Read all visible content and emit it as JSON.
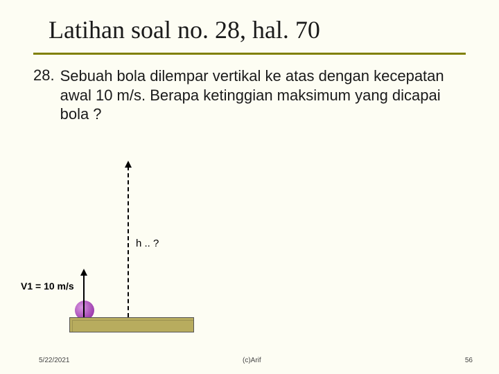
{
  "title": "Latihan soal no. 28, hal. 70",
  "problem": {
    "number": "28.",
    "text": "Sebuah bola dilempar vertikal ke atas dengan kecepatan awal 10 m/s. Berapa ketinggian maksimum yang dicapai bola ?"
  },
  "diagram": {
    "v1_label": "V1 = 10 m/s",
    "h_label": "h .. ?",
    "ball_color": "#a040b0",
    "ground_color": "#b8ac5e"
  },
  "footer": {
    "date": "5/22/2021",
    "credit": "(c)Arif",
    "page": "56"
  },
  "colors": {
    "background": "#fdfdf3",
    "underline": "#808000"
  }
}
